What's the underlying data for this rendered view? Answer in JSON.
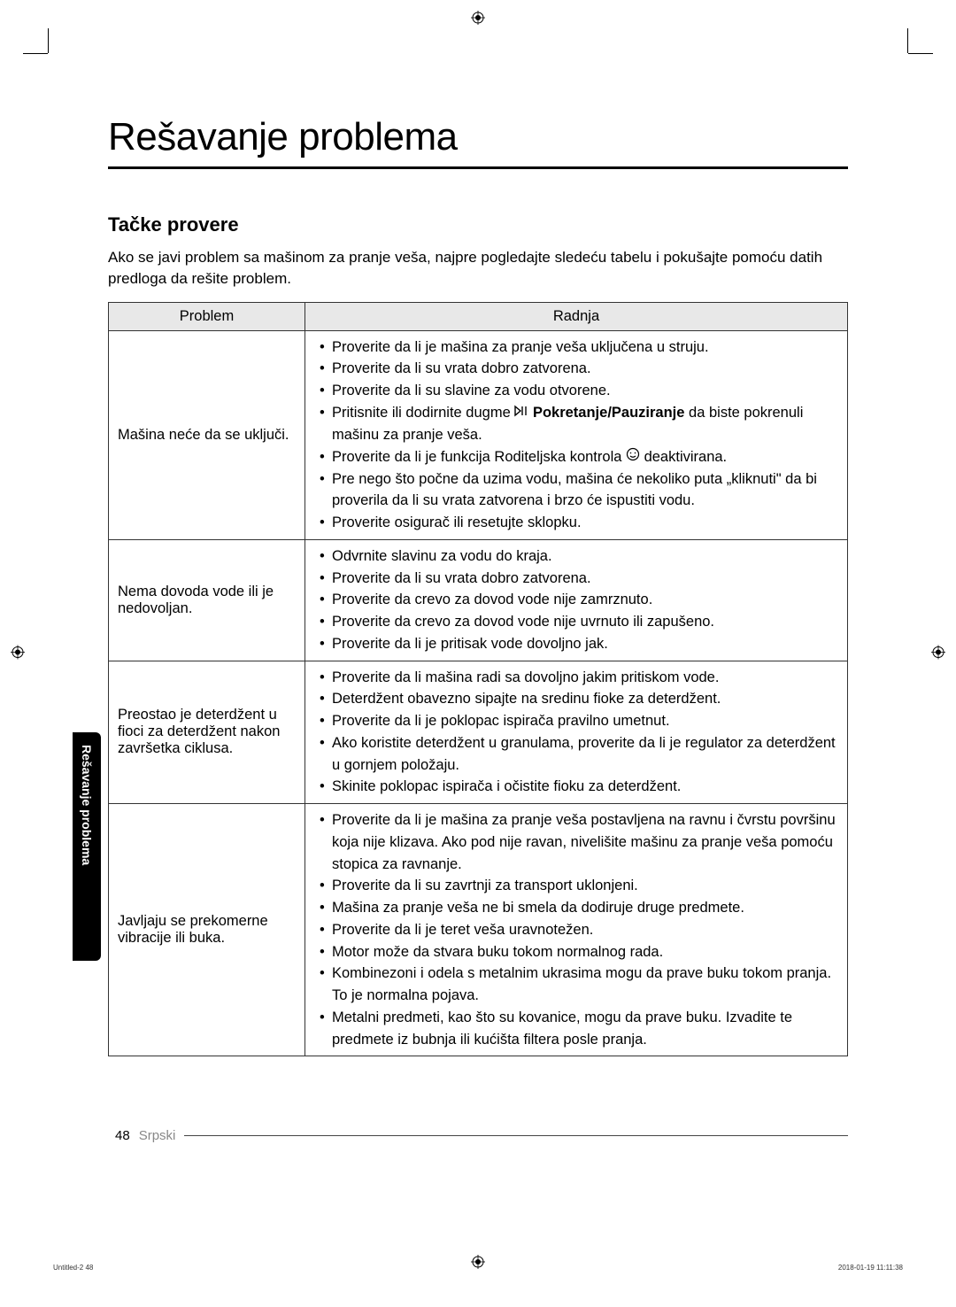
{
  "page": {
    "title": "Rešavanje problema",
    "section_heading": "Tačke provere",
    "intro": "Ako se javi problem sa mašinom za pranje veša, najpre pogledajte sledeću tabelu i pokušajte pomoću datih predloga da rešite problem.",
    "side_tab": "Rešavanje problema",
    "page_number": "48",
    "footer_lang": "Srpski",
    "footer_left": "Untitled-2   48",
    "footer_right": "2018-01-19   11:11:38"
  },
  "table": {
    "header_problem": "Problem",
    "header_action": "Radnja",
    "rows": [
      {
        "problem": "Mašina neće da se uključi.",
        "actions": [
          "Proverite da li je mašina za pranje veša uključena u struju.",
          "Proverite da li su vrata dobro zatvorena.",
          "Proverite da li su slavine za vodu otvorene.",
          "Pritisnite ili dodirnite dugme [PLAY_ICON] Pokretanje/Pauziranje da biste pokrenuli mašinu za pranje veša.",
          "Proverite da li je funkcija Roditeljska kontrola [LOCK_ICON] deaktivirana.",
          "Pre nego što počne da uzima vodu, mašina će nekoliko puta „kliknuti\" da bi proverila da li su vrata zatvorena i brzo će ispustiti vodu.",
          "Proverite osigurač ili resetujte sklopku."
        ]
      },
      {
        "problem": "Nema dovoda vode ili je nedovoljan.",
        "actions": [
          "Odvrnite slavinu za vodu do kraja.",
          "Proverite da li su vrata dobro zatvorena.",
          "Proverite da crevo za dovod vode nije zamrznuto.",
          "Proverite da crevo za dovod vode nije uvrnuto ili zapušeno.",
          "Proverite da li je pritisak vode dovoljno jak."
        ]
      },
      {
        "problem": "Preostao je deterdžent u fioci za deterdžent nakon završetka ciklusa.",
        "actions": [
          "Proverite da li mašina radi sa dovoljno jakim pritiskom vode.",
          "Deterdžent obavezno sipajte na sredinu fioke za deterdžent.",
          "Proverite da li je poklopac ispirača pravilno umetnut.",
          "Ako koristite deterdžent u granulama, proverite da li je regulator za deterdžent u gornjem položaju.",
          "Skinite poklopac ispirača i očistite fioku za deterdžent."
        ]
      },
      {
        "problem": "Javljaju se prekomerne vibracije ili buka.",
        "actions": [
          "Proverite da li je mašina za pranje veša postavljena na ravnu i čvrstu površinu koja nije klizava. Ako pod nije ravan, nivelišite mašinu za pranje veša pomoću stopica za ravnanje.",
          "Proverite da li su zavrtnji za transport uklonjeni.",
          "Mašina za pranje veša ne bi smela da dodiruje druge predmete.",
          "Proverite da li je teret veša uravnotežen.",
          "Motor može da stvara buku tokom normalnog rada.",
          "Kombinezoni i odela s metalnim ukrasima mogu da prave buku tokom pranja. To je normalna pojava.",
          "Metalni predmeti, kao što su kovanice, mogu da prave buku. Izvadite te predmete iz bubnja ili kućišta filtera posle pranja."
        ]
      }
    ]
  },
  "styling": {
    "background_color": "#ffffff",
    "text_color": "#000000",
    "header_bg": "#e8e8e8",
    "border_color": "#333333",
    "title_fontsize": 44,
    "heading_fontsize": 22,
    "body_fontsize": 17,
    "table_fontsize": 16.5,
    "side_tab_bg": "#000000",
    "side_tab_color": "#ffffff",
    "footer_muted": "#888888"
  }
}
